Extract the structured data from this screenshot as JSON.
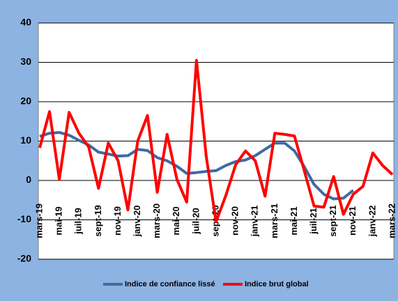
{
  "chart_data": {
    "type": "line",
    "categories": [
      "mars-19",
      null,
      "mai-19",
      null,
      "juil-19",
      null,
      "sept-19",
      null,
      "nov-19",
      null,
      "janv-20",
      null,
      "mars-20",
      null,
      "mai-20",
      null,
      "juil-20",
      null,
      "sept-20",
      null,
      "nov-20",
      null,
      "janv-21",
      null,
      "mars-21",
      null,
      "mai-21",
      null,
      "juil-21",
      null,
      "sept-21",
      null,
      "nov-21",
      null,
      "janv-22",
      null,
      "mars-22"
    ],
    "series": [
      {
        "name": "Indice de confiance lissé",
        "color": "#3f6aa3",
        "values": [
          11.2,
          12,
          12.2,
          11.5,
          10.2,
          9,
          7.2,
          6.7,
          6.2,
          6.3,
          7.9,
          7.6,
          5.8,
          5,
          3.6,
          1.8,
          2,
          2.3,
          2.5,
          3.8,
          4.8,
          5.2,
          6.3,
          7.9,
          9.5,
          9.5,
          7.5,
          3.5,
          -1,
          -3.5,
          -4.7,
          -4.5,
          -2.5,
          null,
          null,
          null,
          null
        ]
      },
      {
        "name": "Indice brut global",
        "color": "#ff0000",
        "values": [
          8.3,
          17.5,
          0.3,
          17.3,
          12,
          8.5,
          -2,
          9.5,
          5,
          -7.5,
          10,
          16.5,
          -3,
          11.7,
          0.3,
          -5.5,
          30.5,
          6,
          -10.5,
          -3.8,
          4,
          7.5,
          5,
          -4,
          12,
          11.7,
          11.3,
          2.5,
          -6.5,
          -6.8,
          1,
          -8.6,
          -3.5,
          -1.5,
          7,
          3.8,
          1.5
        ]
      }
    ],
    "ylim": [
      -20,
      40
    ],
    "yticks": [
      -20,
      -10,
      0,
      10,
      20,
      30,
      40
    ],
    "grid": true,
    "legend": "bottom"
  }
}
